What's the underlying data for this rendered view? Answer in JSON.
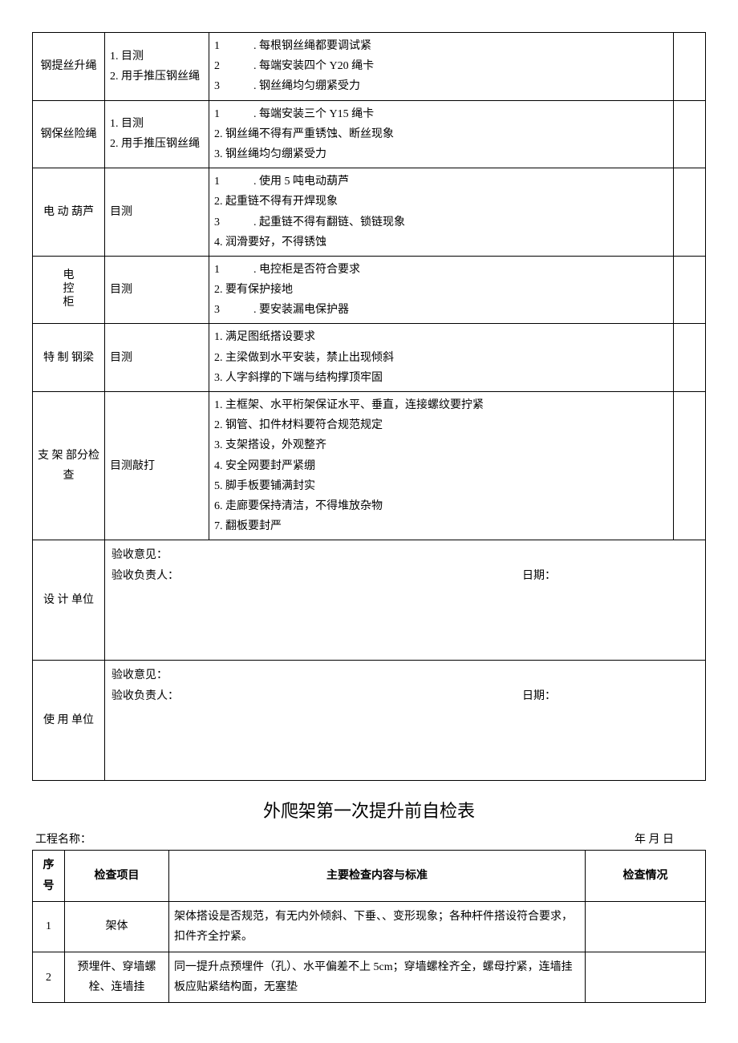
{
  "table1": {
    "rows": [
      {
        "label": "钢提丝升绳",
        "method": "1. 目测\n2. 用手推压钢丝绳",
        "criteria": "1　　　. 每根钢丝绳都要调试紧\n2　　　. 每端安装四个 Y20 绳卡\n3　　　. 钢丝绳均匀绷紧受力"
      },
      {
        "label": "钢保丝险绳",
        "method": "1. 目测\n2. 用手推压钢丝绳",
        "criteria": "1　　　. 每端安装三个 Y15 绳卡\n2. 钢丝绳不得有严重锈蚀、断丝现象\n3. 钢丝绳均匀绷紧受力"
      },
      {
        "label": "电 动 葫芦",
        "method": "目测",
        "criteria": "1　　　. 使用 5 吨电动葫芦\n2. 起重链不得有开焊现象\n3　　　. 起重链不得有翻链、锁链现象\n4. 润滑要好，不得锈蚀"
      },
      {
        "label": "电控柜",
        "method": "目测",
        "criteria": "1　　　. 电控柜是否符合要求\n2. 要有保护接地\n3　　　. 要安装漏电保护器",
        "vertical": true
      },
      {
        "label": "特 制 钢梁",
        "method": "目测",
        "criteria": "1. 满足图纸搭设要求\n2. 主梁做到水平安装，禁止出现倾斜\n3. 人字斜撑的下端与结构撑顶牢固"
      },
      {
        "label": "支 架 部分检查",
        "method": "目测敲打",
        "criteria": "1. 主框架、水平桁架保证水平、垂直，连接螺纹要拧紧\n2. 钢管、扣件材料要符合规范规定\n3. 支架搭设，外观整齐\n4. 安全网要封严紧绷\n5. 脚手板要铺满封实\n6. 走廊要保持清洁，不得堆放杂物\n7. 翻板要封严"
      }
    ],
    "signatures": [
      {
        "label": "设 计 单位",
        "opinion": "验收意见：",
        "person": "验收负责人：",
        "date": "日期："
      },
      {
        "label": "使 用 单位",
        "opinion": "验收意见：",
        "person": "验收负责人：",
        "date": "日期："
      }
    ]
  },
  "title2": "外爬架第一次提升前自检表",
  "meta": {
    "project_label": "工程名称：",
    "date_label": "年 月 日"
  },
  "table2": {
    "headers": [
      "序号",
      "检查项目",
      "主要检查内容与标准",
      "检查情况"
    ],
    "rows": [
      {
        "no": "1",
        "item": "架体",
        "content": "架体搭设是否规范，有无内外倾斜、下垂、、变形现象；各种杆件搭设符合要求，扣件齐全拧紧。"
      },
      {
        "no": "2",
        "item": "预埋件、穿墙螺栓、连墙挂",
        "content": "同一提升点预埋件（孔）、水平偏差不上 5cm；穿墙螺栓齐全，螺母拧紧，连墙挂板应贴紧结构面，无塞垫"
      }
    ]
  }
}
